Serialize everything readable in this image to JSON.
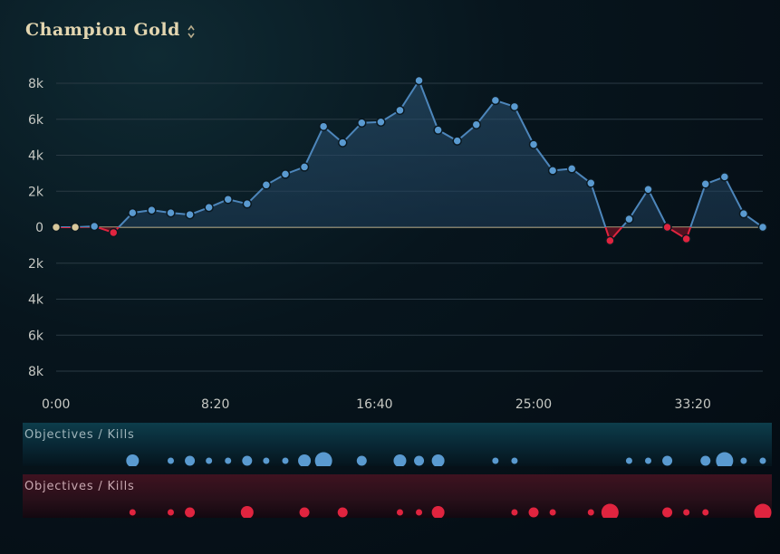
{
  "header": {
    "title": "Champion Gold",
    "sort_icon": "sort-updown-icon"
  },
  "chart_data": {
    "type": "line",
    "title": "Champion Gold",
    "y_tick_labels": [
      "8k",
      "6k",
      "4k",
      "2k",
      "0",
      "2k",
      "4k",
      "6k",
      "8k"
    ],
    "y_tick_values": [
      8000,
      6000,
      4000,
      2000,
      0,
      -2000,
      -4000,
      -6000,
      -8000
    ],
    "x_tick_labels": [
      "0:00",
      "8:20",
      "16:40",
      "25:00",
      "33:20"
    ],
    "x_tick_minutes": [
      0,
      8.3333,
      16.6667,
      25,
      33.3333
    ],
    "ylim": [
      -8000,
      8000
    ],
    "x_minutes": [
      0,
      1,
      2,
      3,
      4,
      5,
      6,
      7,
      8,
      9,
      10,
      11,
      12,
      13,
      14,
      15,
      16,
      17,
      18,
      19,
      20,
      21,
      22,
      23,
      24,
      25,
      26,
      27,
      28,
      29,
      30,
      31,
      32,
      33,
      34,
      35,
      36,
      37
    ],
    "gold_diff": [
      0,
      0,
      50,
      -300,
      800,
      950,
      800,
      700,
      1100,
      1550,
      1300,
      2350,
      2950,
      3350,
      5600,
      4700,
      5800,
      5850,
      6500,
      8150,
      5400,
      4800,
      5700,
      7050,
      6700,
      4600,
      3150,
      3250,
      2450,
      -750,
      450,
      2100,
      0,
      -650,
      2400,
      2800,
      750,
      0
    ],
    "point_colors": [
      "#d8c89c",
      "#d8c89c",
      "#5a9ad0",
      "#e0243f",
      "#5a9ad0",
      "#5a9ad0",
      "#5a9ad0",
      "#5a9ad0",
      "#5a9ad0",
      "#5a9ad0",
      "#5a9ad0",
      "#5a9ad0",
      "#5a9ad0",
      "#5a9ad0",
      "#5a9ad0",
      "#5a9ad0",
      "#5a9ad0",
      "#5a9ad0",
      "#5a9ad0",
      "#5a9ad0",
      "#5a9ad0",
      "#5a9ad0",
      "#5a9ad0",
      "#5a9ad0",
      "#5a9ad0",
      "#5a9ad0",
      "#5a9ad0",
      "#5a9ad0",
      "#5a9ad0",
      "#e0243f",
      "#5a9ad0",
      "#5a9ad0",
      "#e0243f",
      "#e0243f",
      "#5a9ad0",
      "#5a9ad0",
      "#5a9ad0",
      "#5a9ad0"
    ],
    "grid": true,
    "colors": {
      "blue": "#5a9ad0",
      "red": "#e0243f",
      "neutral": "#d8c89c",
      "line": "#4d86bb"
    }
  },
  "objectives": {
    "blue_label": "Objectives / Kills",
    "red_label": "Objectives / Kills",
    "blue_events": [
      {
        "minute": 4,
        "size": "large"
      },
      {
        "minute": 6,
        "size": "small"
      },
      {
        "minute": 7,
        "size": "medium"
      },
      {
        "minute": 8,
        "size": "small"
      },
      {
        "minute": 9,
        "size": "small"
      },
      {
        "minute": 10,
        "size": "medium"
      },
      {
        "minute": 11,
        "size": "small"
      },
      {
        "minute": 12,
        "size": "small"
      },
      {
        "minute": 13,
        "size": "large"
      },
      {
        "minute": 14,
        "size": "xlarge"
      },
      {
        "minute": 16,
        "size": "medium"
      },
      {
        "minute": 18,
        "size": "large"
      },
      {
        "minute": 19,
        "size": "medium"
      },
      {
        "minute": 20,
        "size": "large"
      },
      {
        "minute": 23,
        "size": "small"
      },
      {
        "minute": 24,
        "size": "small"
      },
      {
        "minute": 30,
        "size": "small"
      },
      {
        "minute": 31,
        "size": "small"
      },
      {
        "minute": 32,
        "size": "medium"
      },
      {
        "minute": 34,
        "size": "medium"
      },
      {
        "minute": 35,
        "size": "xlarge"
      },
      {
        "minute": 36,
        "size": "small"
      },
      {
        "minute": 37,
        "size": "small"
      }
    ],
    "red_events": [
      {
        "minute": 4,
        "size": "small"
      },
      {
        "minute": 6,
        "size": "small"
      },
      {
        "minute": 7,
        "size": "medium"
      },
      {
        "minute": 10,
        "size": "large"
      },
      {
        "minute": 13,
        "size": "medium"
      },
      {
        "minute": 15,
        "size": "medium"
      },
      {
        "minute": 18,
        "size": "small"
      },
      {
        "minute": 19,
        "size": "small"
      },
      {
        "minute": 20,
        "size": "large"
      },
      {
        "minute": 24,
        "size": "small"
      },
      {
        "minute": 25,
        "size": "medium"
      },
      {
        "minute": 26,
        "size": "small"
      },
      {
        "minute": 28,
        "size": "small"
      },
      {
        "minute": 29,
        "size": "xlarge"
      },
      {
        "minute": 32,
        "size": "medium"
      },
      {
        "minute": 33,
        "size": "small"
      },
      {
        "minute": 34,
        "size": "small"
      },
      {
        "minute": 37,
        "size": "xlarge"
      }
    ]
  }
}
